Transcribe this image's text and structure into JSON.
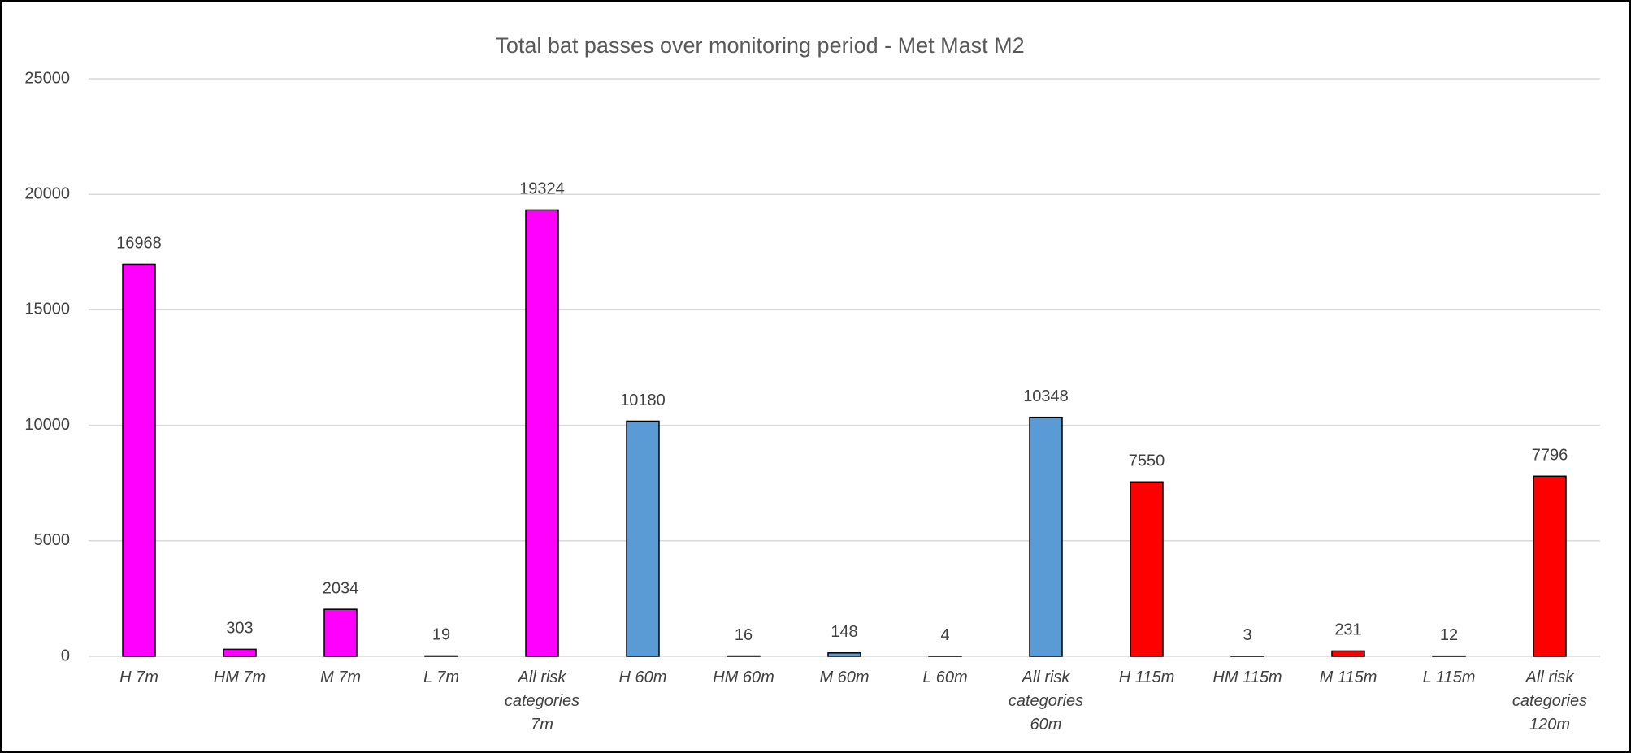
{
  "chart_data": {
    "type": "bar",
    "title": "Total bat passes over monitoring period - Met Mast M2",
    "categories": [
      "H 7m",
      "HM 7m",
      "M 7m",
      "L 7m",
      "All risk categories 7m",
      "H 60m",
      "HM 60m",
      "M 60m",
      "L 60m",
      "All risk categories 60m",
      "H 115m",
      "HM 115m",
      "M 115m",
      "L 115m",
      "All risk categories 120m"
    ],
    "values": [
      16968,
      303,
      2034,
      19,
      19324,
      10180,
      16,
      148,
      4,
      10348,
      7550,
      3,
      231,
      12,
      7796
    ],
    "colors": [
      "#ff00ff",
      "#ff00ff",
      "#ff00ff",
      "#ff00ff",
      "#ff00ff",
      "#5b9bd5",
      "#5b9bd5",
      "#5b9bd5",
      "#5b9bd5",
      "#5b9bd5",
      "#ff0000",
      "#ff0000",
      "#ff0000",
      "#ff0000",
      "#ff0000"
    ],
    "ylim": [
      0,
      25000
    ],
    "yticks": [
      0,
      5000,
      10000,
      15000,
      20000,
      25000
    ],
    "grid": true
  }
}
